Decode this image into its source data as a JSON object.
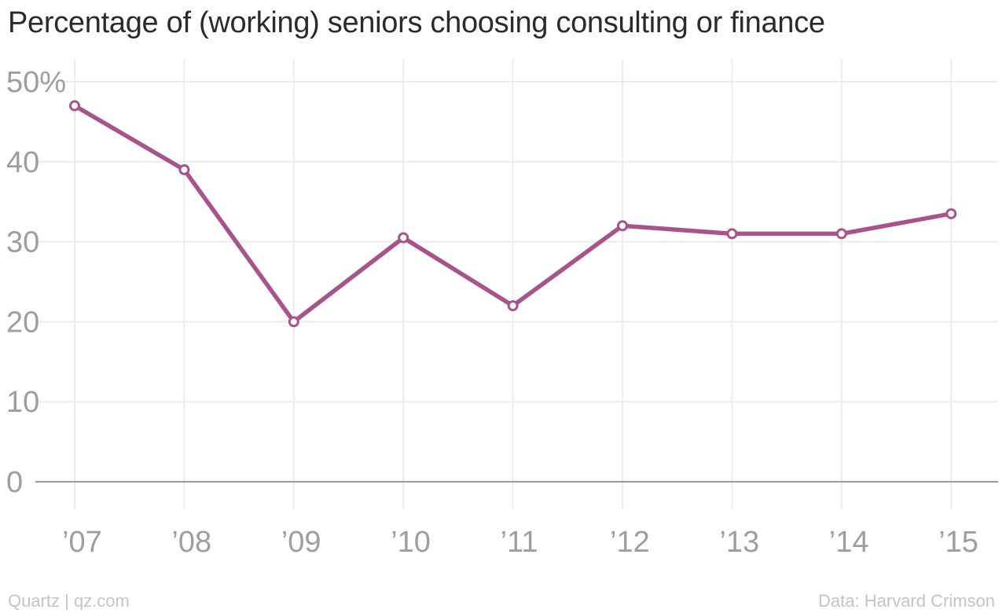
{
  "chart_data": {
    "type": "line",
    "title": "Percentage of (working) seniors choosing consulting or finance",
    "categories": [
      "’07",
      "’08",
      "’09",
      "’10",
      "’11",
      "’12",
      "’13",
      "’14",
      "’15"
    ],
    "series": [
      {
        "values": [
          47,
          39,
          20,
          30.5,
          22,
          32,
          31,
          31,
          33.5
        ]
      }
    ],
    "yticks": [
      {
        "value": 0,
        "label": "0"
      },
      {
        "value": 10,
        "label": "10"
      },
      {
        "value": 20,
        "label": "20"
      },
      {
        "value": 30,
        "label": "30"
      },
      {
        "value": 40,
        "label": "40"
      },
      {
        "value": 50,
        "label": "50%"
      }
    ],
    "ylim": [
      0,
      50
    ],
    "grid": true,
    "line_color": "#a8548a",
    "grid_color": "#ececec",
    "baseline_color": "#9a9a9a",
    "tick_color": "#9e9e9e"
  },
  "footer": {
    "source_left": "Quartz | qz.com",
    "source_right": "Data: Harvard Crimson"
  }
}
